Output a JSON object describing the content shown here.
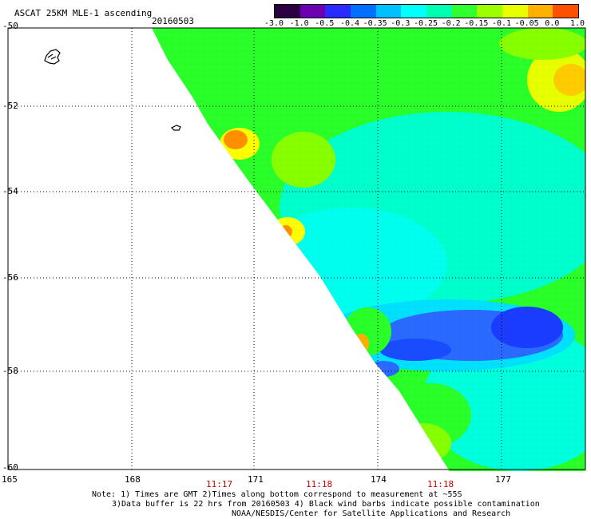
{
  "header": {
    "title": "ASCAT 25KM MLE-1 ascending",
    "date": "20160503"
  },
  "colorbar": {
    "tick_labels": [
      "-3.0",
      "-1.0",
      "-0.5",
      "-0.4",
      "-0.35",
      "-0.3",
      "-0.25",
      "-0.2",
      "-0.15",
      "-0.1",
      "-0.05",
      "0.0",
      "1.0"
    ],
    "colors": [
      "#2a0040",
      "#6a00b0",
      "#2a2aff",
      "#0070ff",
      "#00c0ff",
      "#00ffff",
      "#00ffb0",
      "#30ff30",
      "#9cff00",
      "#e8ff00",
      "#ffb000",
      "#ff5000"
    ]
  },
  "axes": {
    "lat_labels": [
      "-50",
      "-52",
      "-54",
      "-56",
      "-58",
      "-60"
    ],
    "lon_labels": [
      "165",
      "168",
      "171",
      "174",
      "177"
    ],
    "time_labels": [
      "11:17",
      "11:18",
      "11:18"
    ],
    "time_color": "#cc0000"
  },
  "notes": {
    "line1": "Note: 1) Times are GMT 2)Times along bottom correspond to measurement at ~55S",
    "line2": "3)Data buffer is 22 hrs from 20160503 4) Black wind barbs indicate possible contamination",
    "line3": "NOAA/NESDIS/Center for Satellite Applications and Research"
  },
  "map": {
    "land_color": "#000000",
    "grid_color": "#000000",
    "swath_palette": {
      "dark_blue": "#1a3cff",
      "blue": "#2a6aff",
      "cyan": "#00ffff",
      "aqua": "#00ffcc",
      "green": "#2aff2a",
      "lime": "#88ff00",
      "yellow": "#ffff00",
      "orange": "#ff9000"
    }
  }
}
